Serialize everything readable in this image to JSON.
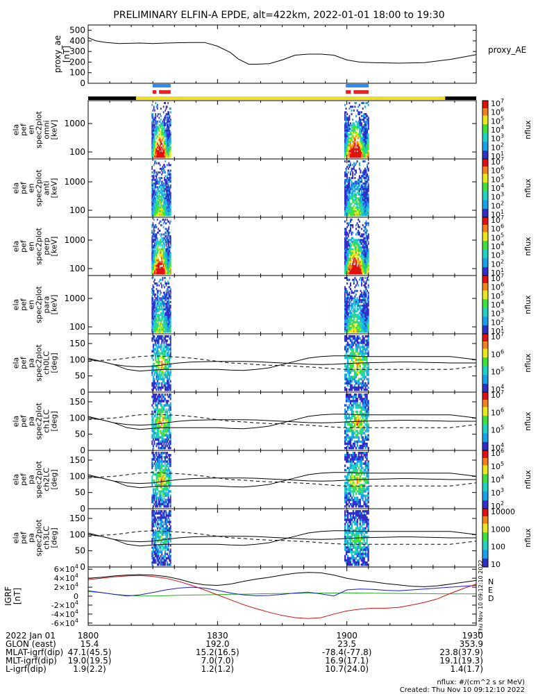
{
  "title": "PRELIMINARY ELFIN-A EPDE, alt=422km, 2022-01-01 18:00 to 19:30",
  "colors": {
    "bar_black": "#000000",
    "bar_yellow": "#f2dd1a",
    "bar_blue": "#2a8df0",
    "bar_red": "#e82020",
    "b_black": "#000000",
    "b_blue": "#1919cc",
    "b_green": "#22b022",
    "b_red": "#d01010"
  },
  "chart_data": {
    "type": "heatmap",
    "time_range": [
      "18:00",
      "19:30"
    ],
    "x_tick_labels": [
      "1800",
      "1830",
      "1900",
      "1930"
    ],
    "x_tick_hours": [
      18.0,
      18.5,
      19.0,
      19.5
    ],
    "science_zones": [
      {
        "start": 18.249,
        "end": 18.319
      },
      {
        "start": 18.996,
        "end": 19.084
      }
    ],
    "proxy_ae": {
      "ylabel": [
        "proxy_ae",
        "[nT]"
      ],
      "label": "proxy_AE",
      "ylim": [
        0,
        550
      ],
      "yticks": [
        "0",
        "100",
        "200",
        "300",
        "400",
        "500"
      ],
      "t": [
        18.0,
        18.03,
        18.07,
        18.12,
        18.2,
        18.25,
        18.3,
        18.4,
        18.45,
        18.5,
        18.55,
        18.58,
        18.62,
        18.65,
        18.7,
        18.75,
        18.8,
        18.85,
        18.9,
        18.95,
        19.0,
        19.05,
        19.1,
        19.2,
        19.3,
        19.4,
        19.5
      ],
      "values": [
        430,
        400,
        385,
        375,
        380,
        375,
        380,
        385,
        385,
        350,
        290,
        230,
        180,
        180,
        185,
        220,
        265,
        275,
        275,
        265,
        220,
        200,
        195,
        190,
        195,
        225,
        270
      ]
    },
    "energy_panels": [
      {
        "ylabel": [
          "ela",
          "pef",
          "en",
          "spec2plot",
          "omni",
          "[keV]"
        ],
        "yticks": [
          "100",
          "1000"
        ],
        "cbar_ticks": [
          "10",
          "10",
          "10",
          "10",
          "10",
          "10",
          "10"
        ],
        "cbar_exps": [
          "1",
          "2",
          "3",
          "4",
          "5",
          "6",
          "7"
        ],
        "cbar_label": "nflux"
      },
      {
        "ylabel": [
          "ela",
          "pef",
          "en",
          "spec2plot",
          "anti",
          "[keV]"
        ],
        "yticks": [
          "100",
          "1000"
        ],
        "cbar_ticks": [
          "10",
          "10",
          "10",
          "10",
          "10",
          "10",
          "10"
        ],
        "cbar_exps": [
          "1",
          "2",
          "3",
          "4",
          "5",
          "6",
          "7"
        ],
        "cbar_label": "nflux"
      },
      {
        "ylabel": [
          "ela",
          "pef",
          "en",
          "spec2plot",
          "perp",
          "[keV]"
        ],
        "yticks": [
          "100",
          "1000"
        ],
        "cbar_ticks": [
          "10",
          "10",
          "10",
          "10",
          "10",
          "10",
          "10"
        ],
        "cbar_exps": [
          "1",
          "2",
          "3",
          "4",
          "5",
          "6",
          "7"
        ],
        "cbar_label": "nflux"
      },
      {
        "ylabel": [
          "ela",
          "pef",
          "en",
          "spec2plot",
          "para",
          "[keV]"
        ],
        "yticks": [
          "100",
          "1000"
        ],
        "cbar_ticks": [
          "10",
          "10",
          "10",
          "10",
          "10",
          "10",
          "10"
        ],
        "cbar_exps": [
          "1",
          "2",
          "3",
          "4",
          "5",
          "6",
          "7"
        ],
        "cbar_label": "nflux"
      }
    ],
    "pitch_panels": [
      {
        "ylabel": [
          "ela",
          "pef",
          "pa",
          "spec2plot",
          "ch0LC",
          "[deg]"
        ],
        "yticks": [
          "0",
          "50",
          "100",
          "150"
        ],
        "cbar_ticks": [
          "10",
          "10",
          "10",
          "10"
        ],
        "cbar_exps": [
          "4",
          "5",
          "6",
          "7"
        ],
        "cbar_label": "nflux"
      },
      {
        "ylabel": [
          "ela",
          "pef",
          "pa",
          "spec2plot",
          "ch1LC",
          "[deg]"
        ],
        "yticks": [
          "0",
          "50",
          "100",
          "150"
        ],
        "cbar_ticks": [
          "10",
          "10",
          "10",
          "10"
        ],
        "cbar_exps": [
          "4",
          "5",
          "6",
          "7"
        ],
        "cbar_label": "nflux"
      },
      {
        "ylabel": [
          "ela",
          "pef",
          "pa",
          "spec2plot",
          "ch2LC",
          "[deg]"
        ],
        "yticks": [
          "0",
          "50",
          "100",
          "150"
        ],
        "cbar_ticks": [
          "10",
          "10",
          "10",
          "10",
          "10"
        ],
        "cbar_exps": [
          "2",
          "3",
          "4",
          "5",
          "6"
        ],
        "cbar_label": "nflux"
      },
      {
        "ylabel": [
          "ela",
          "pef",
          "pa",
          "spec2plot",
          "ch3LC",
          "[deg]"
        ],
        "yticks": [
          "0",
          "50",
          "100",
          "150"
        ],
        "cbar_ticks": [
          "10",
          "100",
          "1000",
          "10000"
        ],
        "cbar_exps": [
          "",
          "",
          "",
          ""
        ],
        "cbar_label": "nflux"
      }
    ],
    "igrf": {
      "ylabel": [
        "IGRF",
        "[nT]"
      ],
      "yticks": [
        "-6×10",
        "-4×10",
        "-2×10",
        "0",
        "2×10",
        "4×10",
        "6×10"
      ],
      "ytick_exp": "4",
      "ylim": [
        -65000,
        65000
      ],
      "legend": [
        "N",
        "E",
        "D"
      ],
      "side_text": "Thu Nov 10 09:12:10 2022",
      "t": [
        18.0,
        18.05,
        18.1,
        18.15,
        18.2,
        18.25,
        18.3,
        18.35,
        18.4,
        18.45,
        18.5,
        18.55,
        18.6,
        18.65,
        18.7,
        18.75,
        18.8,
        18.85,
        18.9,
        18.95,
        19.0,
        19.05,
        19.1,
        19.15,
        19.2,
        19.25,
        19.3,
        19.35,
        19.4,
        19.45,
        19.5
      ],
      "total": [
        40000,
        42000,
        45000,
        47000,
        48000,
        47000,
        44000,
        38000,
        30000,
        25000,
        24000,
        27000,
        33000,
        38000,
        42000,
        47000,
        51000,
        53000,
        52000,
        47000,
        40000,
        35000,
        32000,
        28000,
        25000,
        22000,
        21000,
        23000,
        27000,
        31000,
        35000
      ],
      "north": [
        37000,
        40000,
        43000,
        45000,
        46000,
        44000,
        40000,
        33000,
        24000,
        14000,
        3000,
        -8000,
        -19000,
        -28000,
        -36000,
        -43000,
        -48000,
        -50000,
        -48000,
        -40000,
        -33000,
        -29000,
        -27000,
        -27000,
        -25000,
        -20000,
        -14000,
        -6000,
        6000,
        17000,
        27000
      ],
      "east": [
        10000,
        8000,
        4000,
        2000,
        500,
        300,
        1000,
        2000,
        2500,
        3000,
        3500,
        4000,
        4500,
        5000,
        5500,
        6000,
        6200,
        6500,
        6800,
        7000,
        7200,
        6800,
        6500,
        6200,
        6000,
        5800,
        5500,
        5200,
        5000,
        5000,
        5000
      ],
      "down": [
        12000,
        8000,
        4000,
        500,
        3000,
        8000,
        14000,
        18000,
        20000,
        18000,
        13000,
        7000,
        3000,
        1000,
        1500,
        4000,
        7000,
        9000,
        5000,
        500,
        14000,
        16000,
        15000,
        13000,
        12000,
        14000,
        16000,
        18000,
        20000,
        22000,
        24000
      ]
    },
    "pa_curves": {
      "t": [
        18.0,
        18.05,
        18.1,
        18.15,
        18.2,
        18.25,
        18.3,
        18.35,
        18.4,
        18.45,
        18.5,
        18.55,
        18.6,
        18.65,
        18.7,
        18.75,
        18.8,
        18.85,
        18.9,
        18.95,
        19.0,
        19.05,
        19.1,
        19.15,
        19.2,
        19.25,
        19.3,
        19.35,
        19.4,
        19.45,
        19.5
      ],
      "lc_upper": [
        105,
        95,
        85,
        80,
        78,
        80,
        85,
        90,
        93,
        94,
        95,
        95,
        95,
        94,
        92,
        90,
        88,
        86,
        85,
        86,
        88,
        90,
        91,
        92,
        93,
        93,
        92,
        91,
        90,
        90,
        90
      ],
      "lc_lower": [
        100,
        95,
        85,
        70,
        65,
        68,
        70,
        70,
        70,
        70,
        70,
        68,
        67,
        70,
        75,
        85,
        95,
        105,
        110,
        112,
        112,
        110,
        110,
        110,
        110,
        110,
        110,
        110,
        110,
        105,
        100
      ],
      "antilc": [
        95,
        98,
        100,
        105,
        110,
        112,
        110,
        108,
        105,
        100,
        95,
        90,
        88,
        85,
        83,
        82,
        80,
        78,
        75,
        72,
        70,
        70,
        70,
        70,
        70,
        70,
        70,
        70,
        70,
        75,
        80
      ]
    }
  },
  "footer": {
    "rows": [
      {
        "label": "2022 Jan 01",
        "values": [
          "1800",
          "1830",
          "1900",
          "1930"
        ]
      },
      {
        "label": "GLON (east)",
        "values": [
          "15.4",
          "192.0",
          "23.5",
          "353.9"
        ]
      },
      {
        "label": "MLAT-igrf(dip)",
        "values": [
          "47.1(45.5)",
          "15.2(16.5)",
          "-78.4(-77.8)",
          "23.8(37.9)"
        ]
      },
      {
        "label": "MLT-igrf(dip)",
        "values": [
          "19.0(19.5)",
          "7.0(7.0)",
          "16.9(17.1)",
          "19.1(19.3)"
        ]
      },
      {
        "label": "L-igrf(dip)",
        "values": [
          "1.9(2.2)",
          "1.2(1.2)",
          "10.7(24.0)",
          "1.4(1.7)"
        ]
      }
    ],
    "units": "nflux: #/(cm^2 s sr MeV)",
    "created": "Created: Thu Nov 10 09:12:10 2022"
  }
}
